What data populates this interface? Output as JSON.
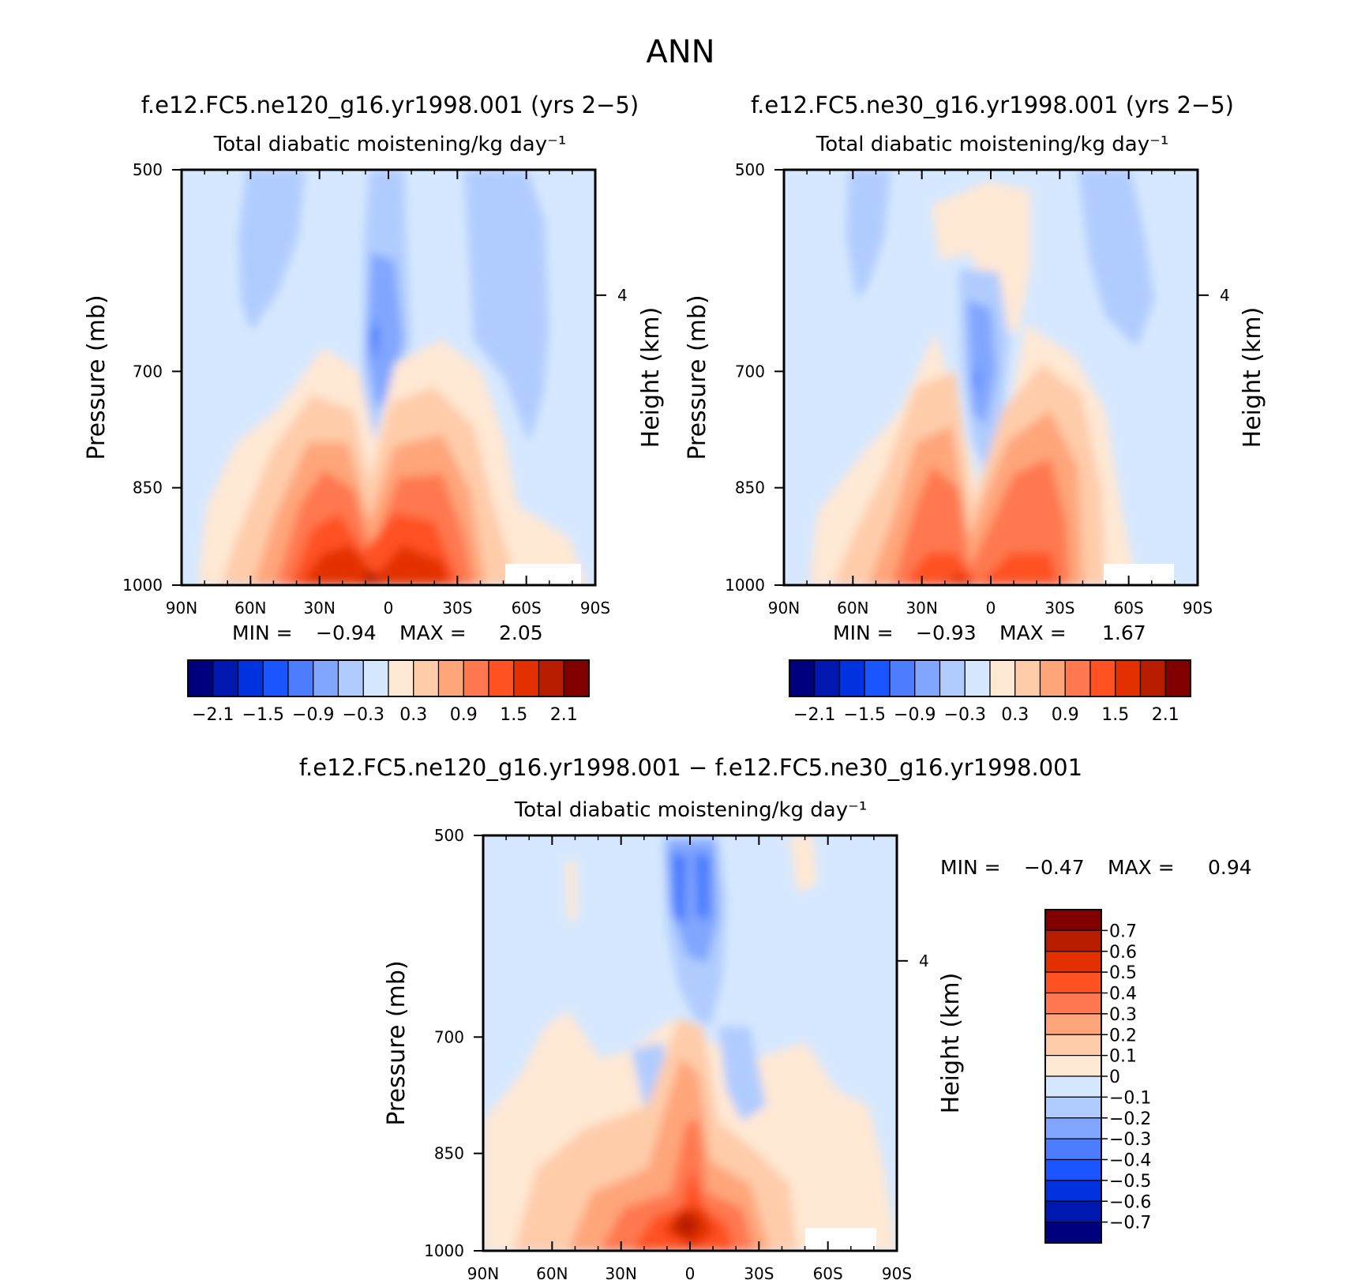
{
  "figure_title": "ANN",
  "chart_data": [
    {
      "type": "heatmap",
      "id": "panel-ne120",
      "title": "f.e12.FC5.ne120_g16.yr1998.001 (yrs 2−5)",
      "subtitle": "Total diabatic moistening/kg day⁻¹",
      "ylabel": "Pressure (mb)",
      "ylabel_right": "Height (km)",
      "x_ticks": [
        "90N",
        "60N",
        "30N",
        "0",
        "30S",
        "60S",
        "90S"
      ],
      "y_ticks": [
        "500",
        "700",
        "850",
        "1000"
      ],
      "right_ticks": [
        "4"
      ],
      "xlim": [
        90,
        -90
      ],
      "ylim": [
        1000,
        500
      ],
      "min_label": "MIN =",
      "min_value": "−0.94",
      "max_label": "MAX =",
      "max_value": "2.05",
      "colorbar_orientation": "horizontal",
      "colorbar_labels": [
        "−2.1",
        "−1.5",
        "−0.9",
        "−0.3",
        "0.3",
        "0.9",
        "1.5",
        "2.1"
      ],
      "colorbar_levels": [
        -2.1,
        -1.8,
        -1.5,
        -1.2,
        -0.9,
        -0.6,
        -0.3,
        0,
        0.3,
        0.6,
        0.9,
        1.2,
        1.5,
        1.8,
        2.1
      ]
    },
    {
      "type": "heatmap",
      "id": "panel-ne30",
      "title": "f.e12.FC5.ne30_g16.yr1998.001 (yrs 2−5)",
      "subtitle": "Total diabatic moistening/kg day⁻¹",
      "ylabel": "Pressure (mb)",
      "ylabel_right": "Height (km)",
      "x_ticks": [
        "90N",
        "60N",
        "30N",
        "0",
        "30S",
        "60S",
        "90S"
      ],
      "y_ticks": [
        "500",
        "700",
        "850",
        "1000"
      ],
      "right_ticks": [
        "4"
      ],
      "xlim": [
        90,
        -90
      ],
      "ylim": [
        1000,
        500
      ],
      "min_label": "MIN =",
      "min_value": "−0.93",
      "max_label": "MAX =",
      "max_value": "1.67",
      "colorbar_orientation": "horizontal",
      "colorbar_labels": [
        "−2.1",
        "−1.5",
        "−0.9",
        "−0.3",
        "0.3",
        "0.9",
        "1.5",
        "2.1"
      ],
      "colorbar_levels": [
        -2.1,
        -1.8,
        -1.5,
        -1.2,
        -0.9,
        -0.6,
        -0.3,
        0,
        0.3,
        0.6,
        0.9,
        1.2,
        1.5,
        1.8,
        2.1
      ]
    },
    {
      "type": "heatmap",
      "id": "panel-diff",
      "title": "f.e12.FC5.ne120_g16.yr1998.001 − f.e12.FC5.ne30_g16.yr1998.001",
      "subtitle": "Total diabatic moistening/kg day⁻¹",
      "ylabel": "Pressure (mb)",
      "ylabel_right": "Height (km)",
      "x_ticks": [
        "90N",
        "60N",
        "30N",
        "0",
        "30S",
        "60S",
        "90S"
      ],
      "y_ticks": [
        "500",
        "700",
        "850",
        "1000"
      ],
      "right_ticks": [
        "4"
      ],
      "xlim": [
        90,
        -90
      ],
      "ylim": [
        1000,
        500
      ],
      "min_label": "MIN =",
      "min_value": "−0.47",
      "max_label": "MAX =",
      "max_value": "0.94",
      "colorbar_orientation": "vertical",
      "colorbar_labels": [
        "0.7",
        "0.6",
        "0.5",
        "0.4",
        "0.3",
        "0.2",
        "0.1",
        "0",
        "−0.1",
        "−0.2",
        "−0.3",
        "−0.4",
        "−0.5",
        "−0.6",
        "−0.7"
      ]
    }
  ],
  "palette": [
    "#00007f",
    "#0018b0",
    "#0033e0",
    "#1a55ff",
    "#4d7dff",
    "#80a6ff",
    "#b0ccff",
    "#d6e8ff",
    "#ffe8d4",
    "#ffccaa",
    "#ffa57a",
    "#ff7850",
    "#ff5122",
    "#e33000",
    "#b81d00",
    "#800000"
  ]
}
